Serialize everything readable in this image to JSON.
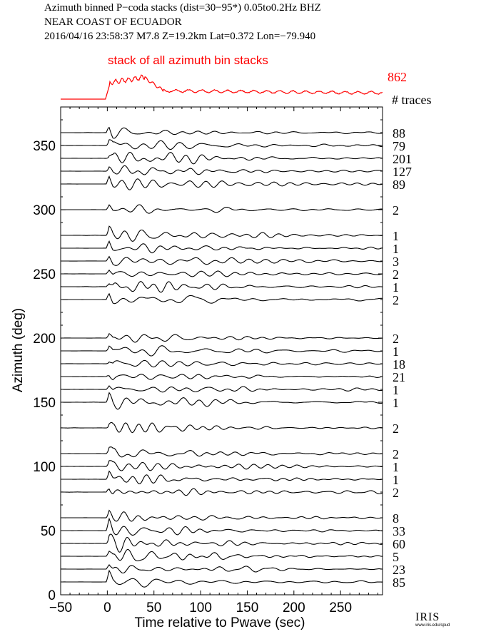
{
  "header": {
    "line1": "Azimuth binned P−coda stacks (dist=30−95*)  0.05to0.2Hz  BHZ",
    "line2": "NEAR COAST OF ECUADOR",
    "line3": "2016/04/16   23:58:37   M7.8   Z=19.2km  Lat=0.372  Lon=−79.940"
  },
  "logo": {
    "text": "IRIS",
    "subtext": "www.iris.edu/spud"
  },
  "chart_data": {
    "type": "line",
    "xlabel": "Time relative to Pwave (sec)",
    "ylabel": "Azimuth (deg)",
    "xlim": [
      -50,
      295
    ],
    "ylim": [
      0,
      380
    ],
    "xticks": [
      -50,
      0,
      50,
      100,
      150,
      200,
      250
    ],
    "yticks": [
      0,
      50,
      100,
      150,
      200,
      250,
      300,
      350
    ],
    "stack": {
      "label": "stack of all azimuth bin stacks",
      "count": "862",
      "color": "#ff0000"
    },
    "count_header": "# traces",
    "traces": [
      {
        "azimuth": 360,
        "count": "88"
      },
      {
        "azimuth": 350,
        "count": "79"
      },
      {
        "azimuth": 340,
        "count": "201"
      },
      {
        "azimuth": 330,
        "count": "127"
      },
      {
        "azimuth": 320,
        "count": "89"
      },
      {
        "azimuth": 300,
        "count": "2"
      },
      {
        "azimuth": 280,
        "count": "1"
      },
      {
        "azimuth": 270,
        "count": "1"
      },
      {
        "azimuth": 260,
        "count": "3"
      },
      {
        "azimuth": 250,
        "count": "2"
      },
      {
        "azimuth": 240,
        "count": "1"
      },
      {
        "azimuth": 230,
        "count": "2"
      },
      {
        "azimuth": 200,
        "count": "2"
      },
      {
        "azimuth": 190,
        "count": "1"
      },
      {
        "azimuth": 180,
        "count": "18"
      },
      {
        "azimuth": 170,
        "count": "21"
      },
      {
        "azimuth": 160,
        "count": "1"
      },
      {
        "azimuth": 150,
        "count": "1"
      },
      {
        "azimuth": 130,
        "count": "2"
      },
      {
        "azimuth": 110,
        "count": "2"
      },
      {
        "azimuth": 100,
        "count": "1"
      },
      {
        "azimuth": 90,
        "count": "1"
      },
      {
        "azimuth": 80,
        "count": "2"
      },
      {
        "azimuth": 60,
        "count": "8"
      },
      {
        "azimuth": 50,
        "count": "33"
      },
      {
        "azimuth": 40,
        "count": "60"
      },
      {
        "azimuth": 30,
        "count": "5"
      },
      {
        "azimuth": 20,
        "count": "23"
      },
      {
        "azimuth": 10,
        "count": "85"
      }
    ]
  }
}
